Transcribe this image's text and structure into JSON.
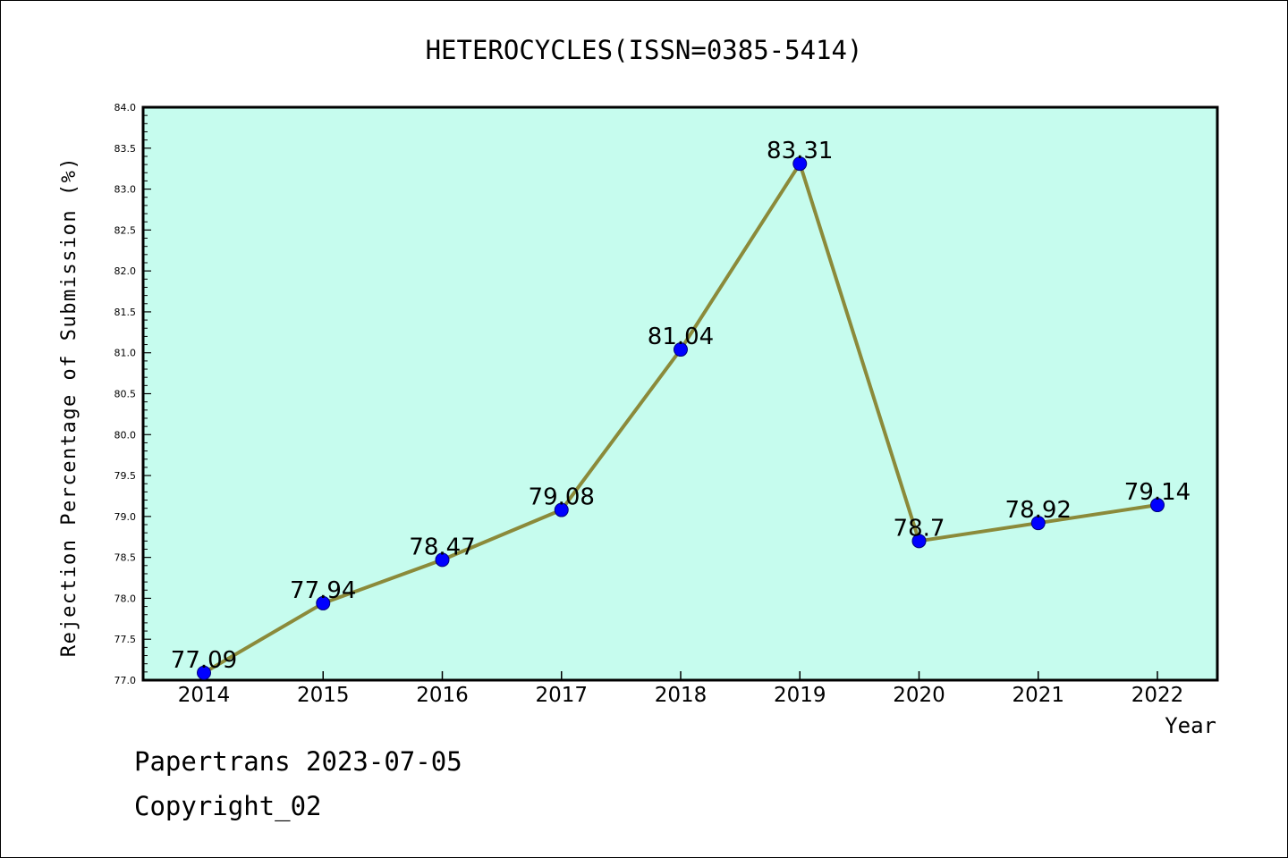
{
  "chart_data": {
    "type": "line",
    "title": "HETEROCYCLES(ISSN=0385-5414)",
    "xlabel": "Year",
    "ylabel": "Rejection Percentage of Submission (%)",
    "categories": [
      "2014",
      "2015",
      "2016",
      "2017",
      "2018",
      "2019",
      "2020",
      "2021",
      "2022"
    ],
    "series": [
      {
        "values": [
          77.09,
          77.94,
          78.47,
          79.08,
          81.04,
          83.31,
          78.7,
          78.92,
          79.14
        ],
        "labels": [
          "77.09",
          "77.94",
          "78.47",
          "79.08",
          "81.04",
          "83.31",
          "78.7",
          "78.92",
          "79.14"
        ]
      }
    ],
    "ylim": [
      77.0,
      84.0
    ],
    "yticks": [
      "77.0",
      "77.5",
      "78.0",
      "78.5",
      "79.0",
      "79.5",
      "80.0",
      "80.5",
      "81.0",
      "81.5",
      "82.0",
      "82.5",
      "83.0",
      "83.5",
      "84.0"
    ],
    "grid": false,
    "colors": {
      "plot_background": "#c6fcee",
      "line": "#8b8a3a",
      "marker": "#0000ff"
    }
  },
  "footer": {
    "line1": "Papertrans 2023-07-05",
    "line2": "Copyright_02"
  }
}
